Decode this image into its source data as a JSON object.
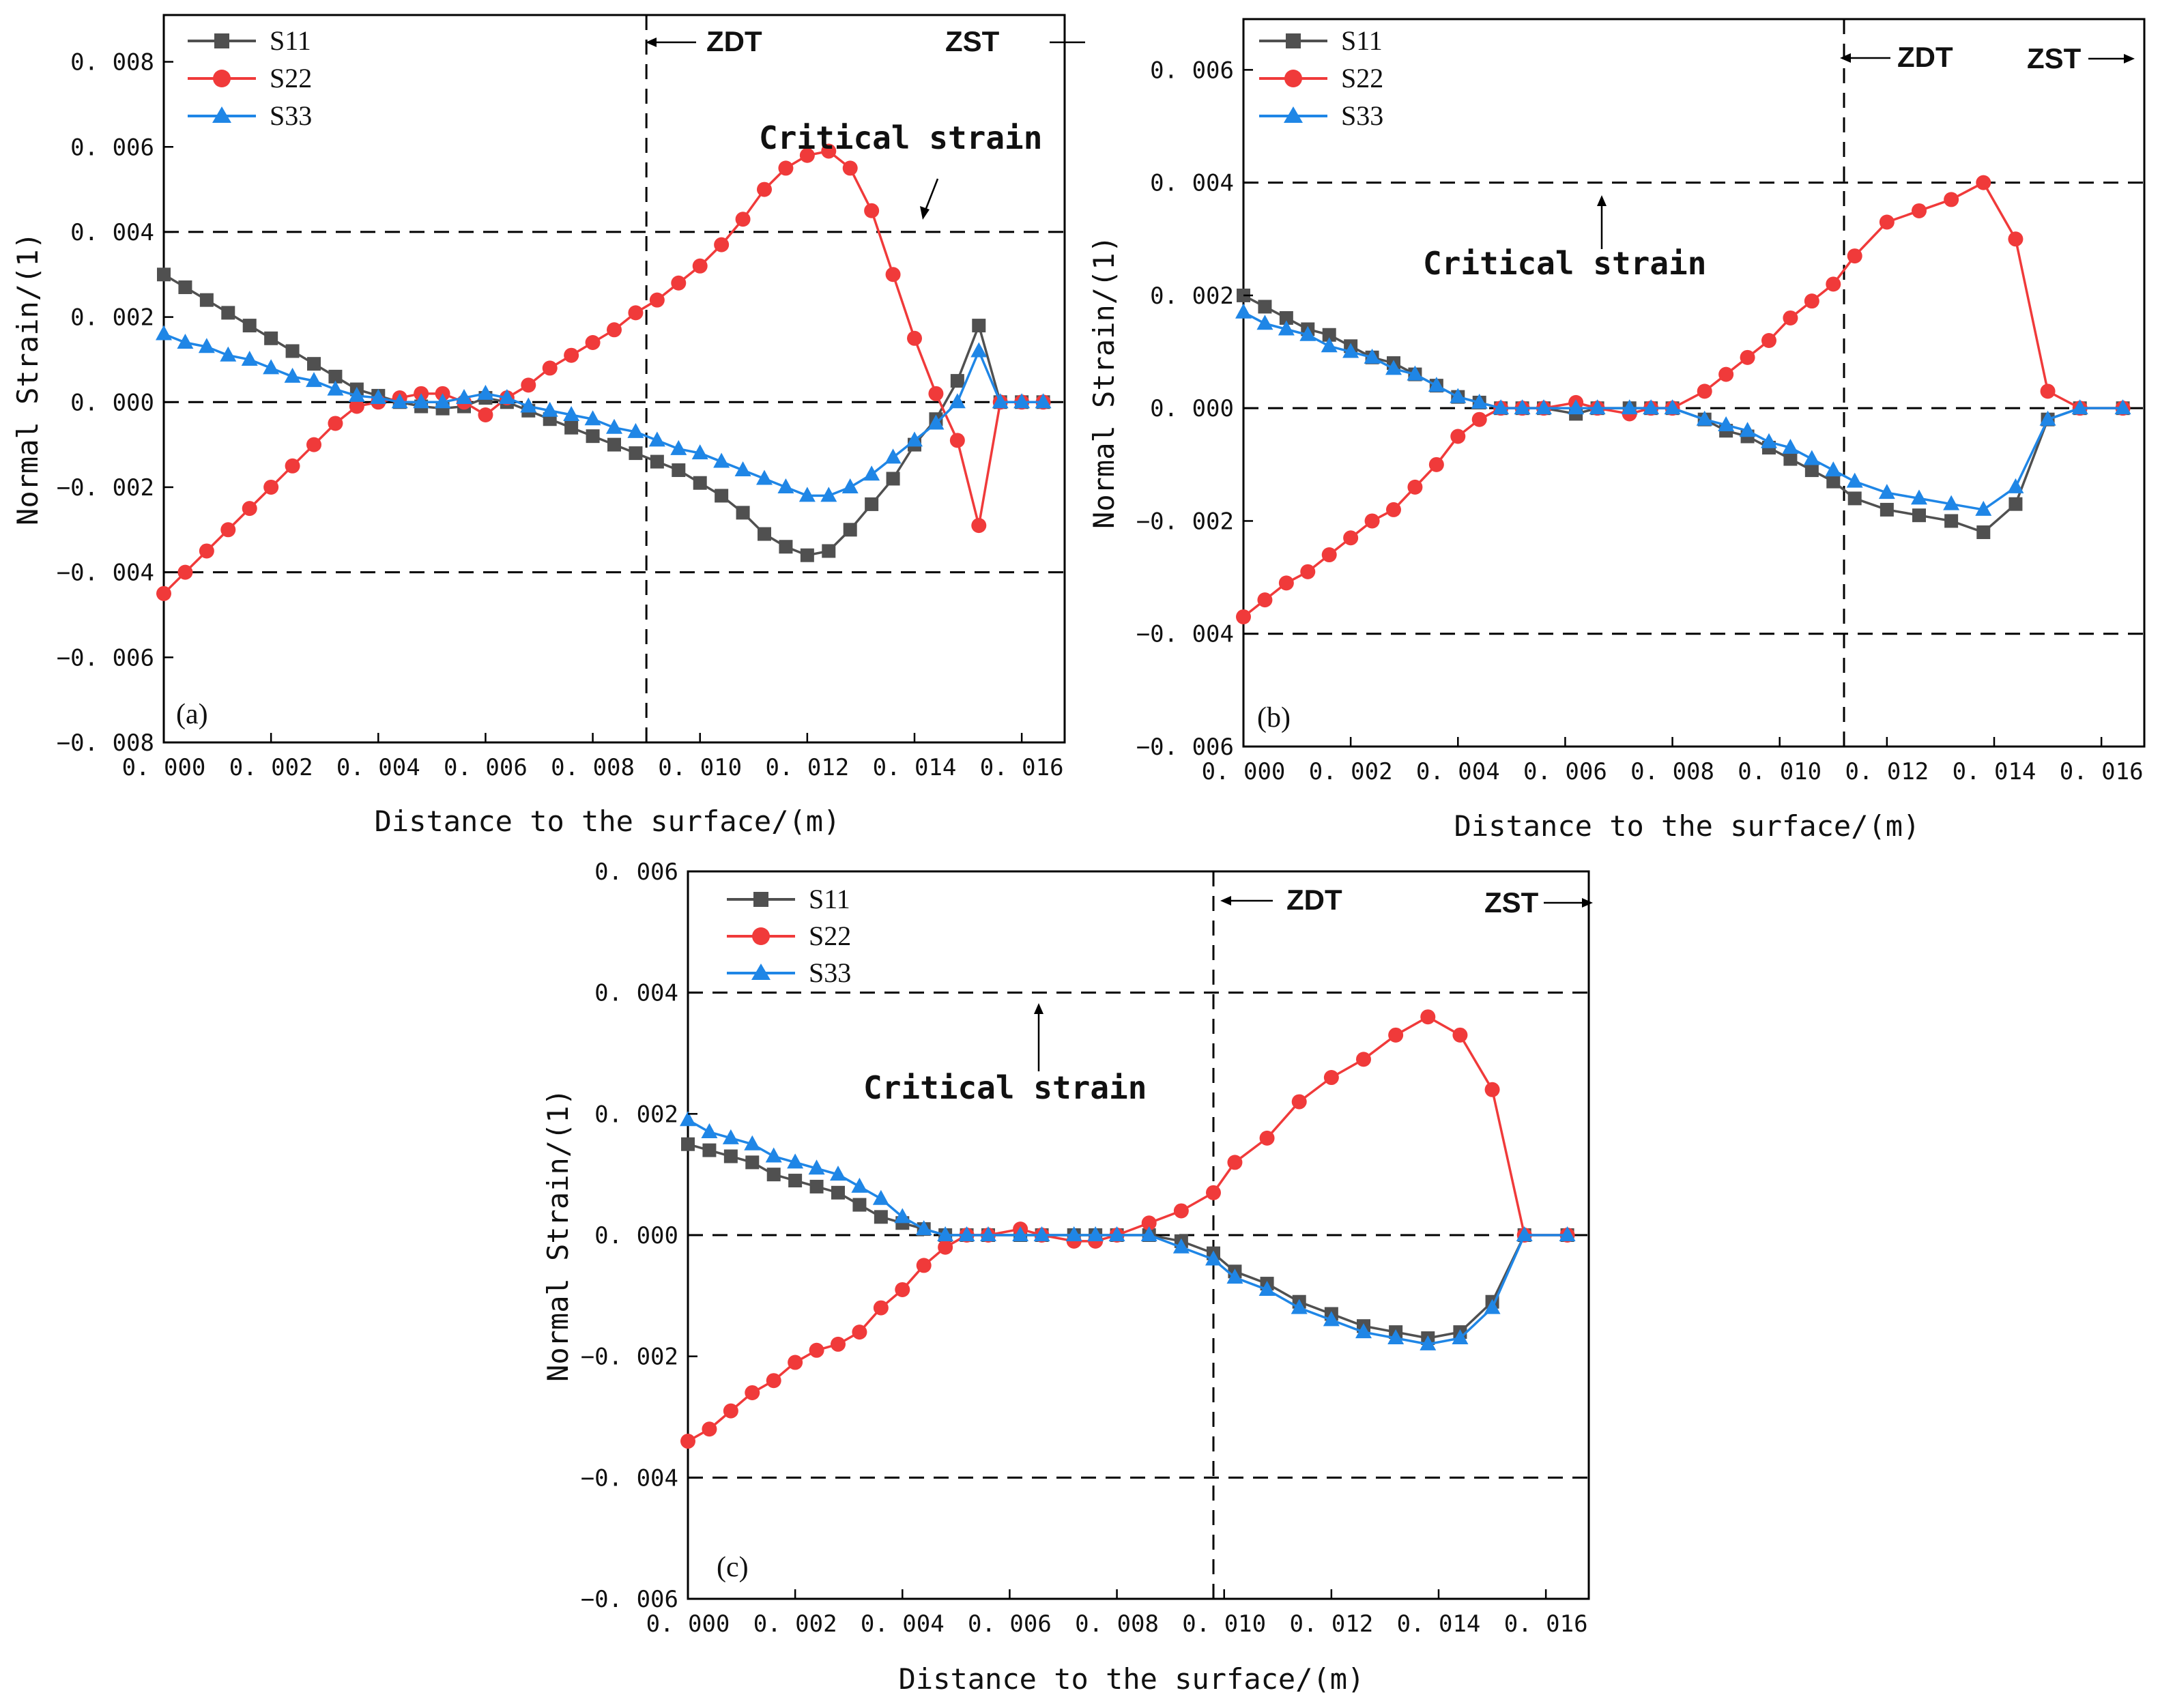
{
  "chart_data": [
    {
      "type": "line",
      "panel_label": "(a)",
      "xlabel": "Distance to the surface/(m)",
      "ylabel": "Normal Strain/(1)",
      "xlim": [
        0,
        0.0168
      ],
      "ylim": [
        -0.008,
        0.0091
      ],
      "xticks": [
        "0.000",
        "0.002",
        "0.004",
        "0.006",
        "0.008",
        "0.010",
        "0.012",
        "0.014",
        "0.016"
      ],
      "yticks": [
        "-0.008",
        "-0.006",
        "-0.004",
        "-0.002",
        "0.000",
        "0.002",
        "0.004",
        "0.006",
        "0.008"
      ],
      "ref_lines_h": [
        0.004,
        0.0,
        -0.004
      ],
      "ref_line_v": 0.009,
      "zone_labels": [
        "ZDT",
        "ZST"
      ],
      "annotation": "Critical strain",
      "legend": [
        "S11",
        "S22",
        "S33"
      ],
      "series": [
        {
          "name": "S11",
          "color": "#505050",
          "marker": "square",
          "x": [
            0.0,
            0.0004,
            0.0008,
            0.0012,
            0.0016,
            0.002,
            0.0024,
            0.0028,
            0.0032,
            0.0036,
            0.004,
            0.0044,
            0.0048,
            0.0052,
            0.0056,
            0.006,
            0.0064,
            0.0068,
            0.0072,
            0.0076,
            0.008,
            0.0084,
            0.0088,
            0.0092,
            0.0096,
            0.01,
            0.0104,
            0.0108,
            0.0112,
            0.0116,
            0.012,
            0.0124,
            0.0128,
            0.0132,
            0.0136,
            0.014,
            0.0144,
            0.0148,
            0.0152,
            0.0156,
            0.016,
            0.0164
          ],
          "y": [
            0.003,
            0.0027,
            0.0024,
            0.0021,
            0.0018,
            0.0015,
            0.0012,
            0.0009,
            0.0006,
            0.0003,
            0.00015,
            0.0,
            -0.0001,
            -0.00015,
            -0.0001,
            0.0001,
            0.0,
            -0.0002,
            -0.0004,
            -0.0006,
            -0.0008,
            -0.001,
            -0.0012,
            -0.0014,
            -0.0016,
            -0.0019,
            -0.0022,
            -0.0026,
            -0.0031,
            -0.0034,
            -0.0036,
            -0.0035,
            -0.003,
            -0.0024,
            -0.0018,
            -0.001,
            -0.0004,
            0.0005,
            0.0018,
            0.0,
            0.0,
            0.0
          ]
        },
        {
          "name": "S22",
          "color": "#f03a3a",
          "marker": "circle",
          "x": [
            0.0,
            0.0004,
            0.0008,
            0.0012,
            0.0016,
            0.002,
            0.0024,
            0.0028,
            0.0032,
            0.0036,
            0.004,
            0.0044,
            0.0048,
            0.0052,
            0.0056,
            0.006,
            0.0064,
            0.0068,
            0.0072,
            0.0076,
            0.008,
            0.0084,
            0.0088,
            0.0092,
            0.0096,
            0.01,
            0.0104,
            0.0108,
            0.0112,
            0.0116,
            0.012,
            0.0124,
            0.0128,
            0.0132,
            0.0136,
            0.014,
            0.0144,
            0.0148,
            0.0152,
            0.0156,
            0.016,
            0.0164
          ],
          "y": [
            -0.0045,
            -0.004,
            -0.0035,
            -0.003,
            -0.0025,
            -0.002,
            -0.0015,
            -0.001,
            -0.0005,
            -0.0001,
            0.0,
            0.0001,
            0.0002,
            0.0002,
            0.0,
            -0.0003,
            0.0001,
            0.0004,
            0.0008,
            0.0011,
            0.0014,
            0.0017,
            0.0021,
            0.0024,
            0.0028,
            0.0032,
            0.0037,
            0.0043,
            0.005,
            0.0055,
            0.0058,
            0.0059,
            0.0055,
            0.0045,
            0.003,
            0.0015,
            0.0002,
            -0.0009,
            -0.0029,
            0.0,
            0.0,
            0.0
          ]
        },
        {
          "name": "S33",
          "color": "#1f86e6",
          "marker": "triangle",
          "x": [
            0.0,
            0.0004,
            0.0008,
            0.0012,
            0.0016,
            0.002,
            0.0024,
            0.0028,
            0.0032,
            0.0036,
            0.004,
            0.0044,
            0.0048,
            0.0052,
            0.0056,
            0.006,
            0.0064,
            0.0068,
            0.0072,
            0.0076,
            0.008,
            0.0084,
            0.0088,
            0.0092,
            0.0096,
            0.01,
            0.0104,
            0.0108,
            0.0112,
            0.0116,
            0.012,
            0.0124,
            0.0128,
            0.0132,
            0.0136,
            0.014,
            0.0144,
            0.0148,
            0.0152,
            0.0156,
            0.016,
            0.0164
          ],
          "y": [
            0.0016,
            0.0014,
            0.0013,
            0.0011,
            0.001,
            0.0008,
            0.0006,
            0.0005,
            0.0003,
            0.00015,
            0.0001,
            0.0,
            0.0,
            0.0,
            0.0001,
            0.0002,
            0.0001,
            -0.0001,
            -0.0002,
            -0.0003,
            -0.0004,
            -0.0006,
            -0.0007,
            -0.0009,
            -0.0011,
            -0.0012,
            -0.0014,
            -0.0016,
            -0.0018,
            -0.002,
            -0.0022,
            -0.0022,
            -0.002,
            -0.0017,
            -0.0013,
            -0.0009,
            -0.0005,
            0.0,
            0.0012,
            0.0,
            0.0,
            0.0
          ]
        }
      ]
    },
    {
      "type": "line",
      "panel_label": "(b)",
      "xlabel": "Distance to the surface/(m)",
      "ylabel": "Normal Strain/(1)",
      "xlim": [
        0,
        0.0168
      ],
      "ylim": [
        -0.006,
        0.0069
      ],
      "xticks": [
        "0.000",
        "0.002",
        "0.004",
        "0.006",
        "0.008",
        "0.010",
        "0.012",
        "0.014",
        "0.016"
      ],
      "yticks": [
        "-0.006",
        "-0.004",
        "-0.002",
        "0.000",
        "0.002",
        "0.004",
        "0.006"
      ],
      "ref_lines_h": [
        0.004,
        0.0,
        -0.004
      ],
      "ref_line_v": 0.0112,
      "zone_labels": [
        "ZDT",
        "ZST"
      ],
      "annotation": "Critical strain",
      "legend": [
        "S11",
        "S22",
        "S33"
      ],
      "series": [
        {
          "name": "S11",
          "color": "#505050",
          "marker": "square",
          "x": [
            0.0,
            0.0004,
            0.0008,
            0.0012,
            0.0016,
            0.002,
            0.0024,
            0.0028,
            0.0032,
            0.0036,
            0.004,
            0.0044,
            0.0048,
            0.0052,
            0.0056,
            0.0062,
            0.0066,
            0.0072,
            0.0076,
            0.008,
            0.0086,
            0.009,
            0.0094,
            0.0098,
            0.0102,
            0.0106,
            0.011,
            0.0114,
            0.012,
            0.0126,
            0.0132,
            0.0138,
            0.0144,
            0.015,
            0.0156,
            0.0164
          ],
          "y": [
            0.002,
            0.0018,
            0.0016,
            0.0014,
            0.0013,
            0.0011,
            0.0009,
            0.0008,
            0.0006,
            0.0004,
            0.0002,
            0.0001,
            0.0,
            0.0,
            0.0,
            -0.0001,
            0.0,
            0.0,
            0.0,
            0.0,
            -0.0002,
            -0.0004,
            -0.0005,
            -0.0007,
            -0.0009,
            -0.0011,
            -0.0013,
            -0.0016,
            -0.0018,
            -0.0019,
            -0.002,
            -0.0022,
            -0.0017,
            -0.0002,
            0.0,
            0.0
          ]
        },
        {
          "name": "S22",
          "color": "#f03a3a",
          "marker": "circle",
          "x": [
            0.0,
            0.0004,
            0.0008,
            0.0012,
            0.0016,
            0.002,
            0.0024,
            0.0028,
            0.0032,
            0.0036,
            0.004,
            0.0044,
            0.0048,
            0.0052,
            0.0056,
            0.0062,
            0.0066,
            0.0072,
            0.0076,
            0.008,
            0.0086,
            0.009,
            0.0094,
            0.0098,
            0.0102,
            0.0106,
            0.011,
            0.0114,
            0.012,
            0.0126,
            0.0132,
            0.0138,
            0.0144,
            0.015,
            0.0156,
            0.0164
          ],
          "y": [
            -0.0037,
            -0.0034,
            -0.0031,
            -0.0029,
            -0.0026,
            -0.0023,
            -0.002,
            -0.0018,
            -0.0014,
            -0.001,
            -0.0005,
            -0.0002,
            0.0,
            0.0,
            0.0,
            0.0001,
            0.0,
            -0.0001,
            0.0,
            0.0,
            0.0003,
            0.0006,
            0.0009,
            0.0012,
            0.0016,
            0.0019,
            0.0022,
            0.0027,
            0.0033,
            0.0035,
            0.0037,
            0.004,
            0.003,
            0.0003,
            0.0,
            0.0
          ]
        },
        {
          "name": "S33",
          "color": "#1f86e6",
          "marker": "triangle",
          "x": [
            0.0,
            0.0004,
            0.0008,
            0.0012,
            0.0016,
            0.002,
            0.0024,
            0.0028,
            0.0032,
            0.0036,
            0.004,
            0.0044,
            0.0048,
            0.0052,
            0.0056,
            0.0062,
            0.0066,
            0.0072,
            0.0076,
            0.008,
            0.0086,
            0.009,
            0.0094,
            0.0098,
            0.0102,
            0.0106,
            0.011,
            0.0114,
            0.012,
            0.0126,
            0.0132,
            0.0138,
            0.0144,
            0.015,
            0.0156,
            0.0164
          ],
          "y": [
            0.0017,
            0.0015,
            0.0014,
            0.0013,
            0.0011,
            0.001,
            0.0009,
            0.0007,
            0.0006,
            0.0004,
            0.0002,
            0.0001,
            0.0,
            0.0,
            0.0,
            0.0,
            0.0,
            0.0,
            0.0,
            0.0,
            -0.0002,
            -0.0003,
            -0.0004,
            -0.0006,
            -0.0007,
            -0.0009,
            -0.0011,
            -0.0013,
            -0.0015,
            -0.0016,
            -0.0017,
            -0.0018,
            -0.0014,
            -0.0002,
            0.0,
            0.0
          ]
        }
      ]
    },
    {
      "type": "line",
      "panel_label": "(c)",
      "xlabel": "Distance to the surface/(m)",
      "ylabel": "Normal Strain/(1)",
      "xlim": [
        0,
        0.0168
      ],
      "ylim": [
        -0.006,
        0.006
      ],
      "xticks": [
        "0.000",
        "0.002",
        "0.004",
        "0.006",
        "0.008",
        "0.010",
        "0.012",
        "0.014",
        "0.016"
      ],
      "yticks": [
        "-0.006",
        "-0.004",
        "-0.002",
        "0.000",
        "0.002",
        "0.004",
        "0.006"
      ],
      "ref_lines_h": [
        0.004,
        0.0,
        -0.004
      ],
      "ref_line_v": 0.0098,
      "zone_labels": [
        "ZDT",
        "ZST"
      ],
      "annotation": "Critical strain",
      "legend": [
        "S11",
        "S22",
        "S33"
      ],
      "series": [
        {
          "name": "S11",
          "color": "#505050",
          "marker": "square",
          "x": [
            0.0,
            0.0004,
            0.0008,
            0.0012,
            0.0016,
            0.002,
            0.0024,
            0.0028,
            0.0032,
            0.0036,
            0.004,
            0.0044,
            0.0048,
            0.0052,
            0.0056,
            0.0062,
            0.0066,
            0.0072,
            0.0076,
            0.008,
            0.0086,
            0.0092,
            0.0098,
            0.0102,
            0.0108,
            0.0114,
            0.012,
            0.0126,
            0.0132,
            0.0138,
            0.0144,
            0.015,
            0.0156,
            0.0164
          ],
          "y": [
            0.0015,
            0.0014,
            0.0013,
            0.0012,
            0.001,
            0.0009,
            0.0008,
            0.0007,
            0.0005,
            0.0003,
            0.0002,
            0.0001,
            0.0,
            0.0,
            0.0,
            0.0,
            0.0,
            0.0,
            0.0,
            0.0,
            0.0,
            -0.0001,
            -0.0003,
            -0.0006,
            -0.0008,
            -0.0011,
            -0.0013,
            -0.0015,
            -0.0016,
            -0.0017,
            -0.0016,
            -0.0011,
            0.0,
            0.0
          ]
        },
        {
          "name": "S22",
          "color": "#f03a3a",
          "marker": "circle",
          "x": [
            0.0,
            0.0004,
            0.0008,
            0.0012,
            0.0016,
            0.002,
            0.0024,
            0.0028,
            0.0032,
            0.0036,
            0.004,
            0.0044,
            0.0048,
            0.0052,
            0.0056,
            0.0062,
            0.0066,
            0.0072,
            0.0076,
            0.008,
            0.0086,
            0.0092,
            0.0098,
            0.0102,
            0.0108,
            0.0114,
            0.012,
            0.0126,
            0.0132,
            0.0138,
            0.0144,
            0.015,
            0.0156,
            0.0164
          ],
          "y": [
            -0.0034,
            -0.0032,
            -0.0029,
            -0.0026,
            -0.0024,
            -0.0021,
            -0.0019,
            -0.0018,
            -0.0016,
            -0.0012,
            -0.0009,
            -0.0005,
            -0.0002,
            0.0,
            0.0,
            0.0001,
            0.0,
            -0.0001,
            -0.0001,
            0.0,
            0.0002,
            0.0004,
            0.0007,
            0.0012,
            0.0016,
            0.0022,
            0.0026,
            0.0029,
            0.0033,
            0.0036,
            0.0033,
            0.0024,
            0.0,
            0.0
          ]
        },
        {
          "name": "S33",
          "color": "#1f86e6",
          "marker": "triangle",
          "x": [
            0.0,
            0.0004,
            0.0008,
            0.0012,
            0.0016,
            0.002,
            0.0024,
            0.0028,
            0.0032,
            0.0036,
            0.004,
            0.0044,
            0.0048,
            0.0052,
            0.0056,
            0.0062,
            0.0066,
            0.0072,
            0.0076,
            0.008,
            0.0086,
            0.0092,
            0.0098,
            0.0102,
            0.0108,
            0.0114,
            0.012,
            0.0126,
            0.0132,
            0.0138,
            0.0144,
            0.015,
            0.0156,
            0.0164
          ],
          "y": [
            0.0019,
            0.0017,
            0.0016,
            0.0015,
            0.0013,
            0.0012,
            0.0011,
            0.001,
            0.0008,
            0.0006,
            0.0003,
            0.0001,
            0.0,
            0.0,
            0.0,
            0.0,
            0.0,
            0.0,
            0.0,
            0.0,
            0.0,
            -0.0002,
            -0.0004,
            -0.0007,
            -0.0009,
            -0.0012,
            -0.0014,
            -0.0016,
            -0.0017,
            -0.0018,
            -0.0017,
            -0.0012,
            0.0,
            0.0
          ]
        }
      ]
    }
  ]
}
